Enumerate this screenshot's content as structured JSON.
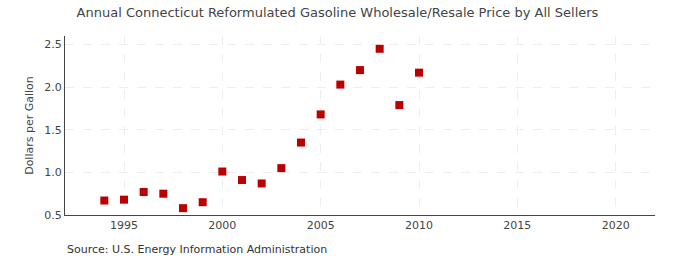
{
  "chart_data": {
    "type": "scatter",
    "title": "Annual Connecticut Reformulated Gasoline Wholesale/Resale Price by All Sellers",
    "ylabel": "Dollars per Gallon",
    "annotations": [
      "Source: U.S. Energy Information Administration"
    ],
    "x": [
      1994,
      1995,
      1996,
      1997,
      1998,
      1999,
      2000,
      2001,
      2002,
      2003,
      2004,
      2005,
      2006,
      2007,
      2008,
      2009,
      2010
    ],
    "values": [
      0.67,
      0.68,
      0.77,
      0.75,
      0.58,
      0.65,
      1.01,
      0.91,
      0.87,
      1.05,
      1.35,
      1.68,
      2.03,
      2.2,
      2.45,
      1.79,
      2.17
    ],
    "color": "#bb0000",
    "marker": "square",
    "xlim": [
      1992,
      2022
    ],
    "ylim": [
      0.5,
      2.6
    ],
    "xticks": [
      1995,
      2000,
      2005,
      2010,
      2015,
      2020
    ],
    "yticks": [
      0.5,
      {
        "value": 1.0,
        "label": "1.0"
      },
      1.5,
      {
        "value": 2.0,
        "label": "2.0"
      },
      2.5
    ],
    "grid": true
  }
}
